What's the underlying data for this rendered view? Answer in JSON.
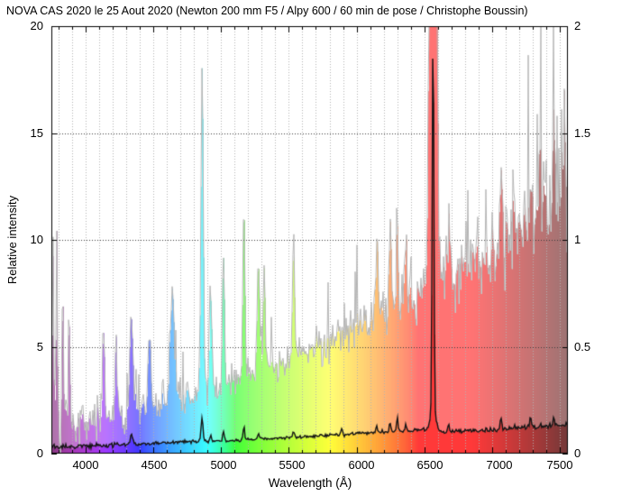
{
  "title": "NOVA CAS 2020 le 25 Aout 2020 (Newton 200 mm F5 / Alpy 600 / 60 min de pose / Christophe Boussin)",
  "chart_data": {
    "type": "line",
    "title": "NOVA CAS 2020 le 25 Aout 2020 (Newton 200 mm F5 / Alpy 600 / 60 min de pose / Christophe Boussin)",
    "xlabel": "Wavelength (Å)",
    "ylabel": "Relative intensity",
    "grid": "dotted, vertical every 100 Å, horizontal at left-axis 5/10/15",
    "legend_position": "none",
    "x_axis": {
      "range": [
        3750,
        7557
      ],
      "major_tick_step": 500,
      "minor_tick_step": 100,
      "ticks": [
        {
          "v": 4000,
          "label": "4000"
        },
        {
          "v": 4500,
          "label": "4500"
        },
        {
          "v": 5000,
          "label": "5000"
        },
        {
          "v": 5500,
          "label": "5500"
        },
        {
          "v": 6000,
          "label": "6000"
        },
        {
          "v": 6500,
          "label": "6500"
        },
        {
          "v": 7000,
          "label": "7000"
        },
        {
          "v": 7500,
          "label": "7500"
        }
      ]
    },
    "y_left": {
      "label": "Relative intensity",
      "range": [
        0,
        20
      ],
      "ticks": [
        {
          "v": 0,
          "label": "0"
        },
        {
          "v": 5,
          "label": "5"
        },
        {
          "v": 10,
          "label": "10"
        },
        {
          "v": 15,
          "label": "15"
        },
        {
          "v": 20,
          "label": "20"
        }
      ],
      "grid_values": [
        5,
        10,
        15
      ]
    },
    "y_right": {
      "range": [
        0,
        2
      ],
      "ticks": [
        {
          "v": 0,
          "label": "0"
        },
        {
          "v": 0.5,
          "label": "0.5"
        },
        {
          "v": 1,
          "label": "1"
        },
        {
          "v": 1.5,
          "label": "1.5"
        },
        {
          "v": 2,
          "label": "2"
        }
      ]
    },
    "noise_seed": 421,
    "colors": {
      "gray_line": "#b5b5b5",
      "black_line": "#141414",
      "grid_minor": "#b0b0b0",
      "grid_major": "#3a3a3a",
      "axis": "#000000",
      "background": "#ffffff",
      "fill_alpha": 0.55,
      "under_black_fill_alpha": 0.5
    },
    "series": [
      {
        "name": "gray-noisy-spectrum",
        "axis": "left",
        "style": "noisy line with wavelength-colored fill under curve",
        "envelope": [
          [
            3750,
            1.3
          ],
          [
            3800,
            1.6
          ],
          [
            3850,
            1.45
          ],
          [
            3900,
            1.35
          ],
          [
            3950,
            1.4
          ],
          [
            4000,
            1.5
          ],
          [
            4100,
            1.6
          ],
          [
            4200,
            1.75
          ],
          [
            4300,
            1.9
          ],
          [
            4400,
            2.05
          ],
          [
            4500,
            2.2
          ],
          [
            4600,
            2.35
          ],
          [
            4700,
            2.5
          ],
          [
            4800,
            2.7
          ],
          [
            4900,
            2.95
          ],
          [
            5000,
            3.15
          ],
          [
            5100,
            3.4
          ],
          [
            5200,
            3.65
          ],
          [
            5300,
            3.9
          ],
          [
            5400,
            4.15
          ],
          [
            5500,
            4.4
          ],
          [
            5600,
            4.7
          ],
          [
            5700,
            5.0
          ],
          [
            5800,
            5.3
          ],
          [
            5900,
            5.65
          ],
          [
            6000,
            6.0
          ],
          [
            6100,
            6.3
          ],
          [
            6200,
            6.6
          ],
          [
            6300,
            6.9
          ],
          [
            6400,
            7.2
          ],
          [
            6500,
            7.7
          ],
          [
            6600,
            8.1
          ],
          [
            6700,
            8.4
          ],
          [
            6800,
            8.8
          ],
          [
            6900,
            9.2
          ],
          [
            7000,
            9.6
          ],
          [
            7100,
            10.1
          ],
          [
            7200,
            10.6
          ],
          [
            7300,
            11.0
          ],
          [
            7400,
            11.5
          ],
          [
            7500,
            11.8
          ],
          [
            7557,
            12.0
          ]
        ],
        "noise_sigma": [
          [
            3750,
            2.3
          ],
          [
            3820,
            1.9
          ],
          [
            3900,
            1.3
          ],
          [
            4000,
            0.9
          ],
          [
            4300,
            0.75
          ],
          [
            4800,
            0.7
          ],
          [
            5300,
            0.7
          ],
          [
            5800,
            0.8
          ],
          [
            6200,
            1.0
          ],
          [
            6600,
            1.3
          ],
          [
            6900,
            1.7
          ],
          [
            7150,
            2.1
          ],
          [
            7400,
            2.5
          ],
          [
            7557,
            2.6
          ]
        ],
        "emission_features": [
          [
            3762,
            7.2,
            5
          ],
          [
            3790,
            9.0,
            5
          ],
          [
            3835,
            5.5,
            7
          ],
          [
            3882,
            4.8,
            7
          ],
          [
            4135,
            4.5,
            7
          ],
          [
            4226,
            3.8,
            7
          ],
          [
            4340,
            4.8,
            12
          ],
          [
            4471,
            3.6,
            10
          ],
          [
            4640,
            5.2,
            16
          ],
          [
            4861,
            15.6,
            9
          ],
          [
            4924,
            5.0,
            8
          ],
          [
            5018,
            6.4,
            8
          ],
          [
            5169,
            8.0,
            8
          ],
          [
            5276,
            5.2,
            9
          ],
          [
            5318,
            4.6,
            8
          ],
          [
            5535,
            4.8,
            9
          ],
          [
            6148,
            3.5,
            9
          ],
          [
            6247,
            4.0,
            9
          ],
          [
            6300,
            4.2,
            8
          ],
          [
            6364,
            3.0,
            8
          ],
          [
            6563,
            110,
            16
          ],
          [
            6678,
            2.5,
            8
          ],
          [
            7065,
            3.2,
            9
          ],
          [
            7281,
            3.0,
            9
          ],
          [
            7350,
            3.6,
            8
          ],
          [
            7452,
            4.3,
            8
          ],
          [
            7530,
            5.0,
            8
          ]
        ]
      },
      {
        "name": "black-spectrum",
        "axis": "right",
        "style": "thin black line",
        "envelope": [
          [
            3750,
            0.03
          ],
          [
            3900,
            0.034
          ],
          [
            4100,
            0.038
          ],
          [
            4300,
            0.043
          ],
          [
            4500,
            0.048
          ],
          [
            4700,
            0.053
          ],
          [
            4900,
            0.058
          ],
          [
            5100,
            0.063
          ],
          [
            5300,
            0.068
          ],
          [
            5500,
            0.075
          ],
          [
            5700,
            0.083
          ],
          [
            5900,
            0.09
          ],
          [
            6100,
            0.098
          ],
          [
            6300,
            0.104
          ],
          [
            6500,
            0.112
          ],
          [
            6650,
            0.1
          ],
          [
            6800,
            0.105
          ],
          [
            7000,
            0.112
          ],
          [
            7200,
            0.12
          ],
          [
            7400,
            0.128
          ],
          [
            7557,
            0.135
          ]
        ],
        "noise_sigma": [
          [
            3750,
            0.013
          ],
          [
            4300,
            0.008
          ],
          [
            5000,
            0.006
          ],
          [
            6000,
            0.008
          ],
          [
            6800,
            0.01
          ],
          [
            7557,
            0.013
          ]
        ],
        "emission_features": [
          [
            4340,
            0.045,
            9
          ],
          [
            4861,
            0.115,
            7
          ],
          [
            4924,
            0.028,
            6
          ],
          [
            5018,
            0.042,
            6
          ],
          [
            5169,
            0.06,
            6
          ],
          [
            5276,
            0.025,
            7
          ],
          [
            5535,
            0.022,
            7
          ],
          [
            5890,
            0.03,
            5
          ],
          [
            6148,
            0.025,
            7
          ],
          [
            6247,
            0.045,
            6
          ],
          [
            6300,
            0.065,
            5
          ],
          [
            6364,
            0.03,
            6
          ],
          [
            6563,
            1.8,
            6
          ],
          [
            6563.5,
            0.1,
            20
          ],
          [
            6678,
            0.04,
            5
          ],
          [
            7065,
            0.05,
            6
          ],
          [
            7281,
            0.045,
            6
          ],
          [
            7452,
            0.04,
            6
          ]
        ]
      }
    ]
  }
}
